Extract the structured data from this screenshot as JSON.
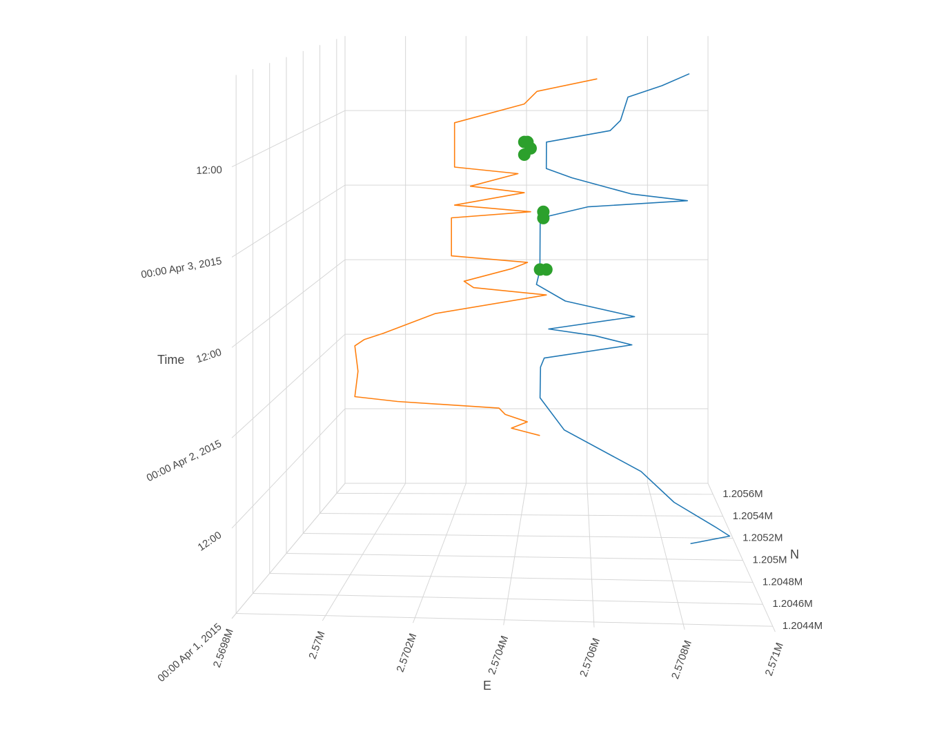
{
  "chart_data": {
    "type": "scatter3d",
    "axes": {
      "x": {
        "title": "E",
        "ticks": [
          "2.5698M",
          "2.57M",
          "2.5702M",
          "2.5704M",
          "2.5706M",
          "2.5708M",
          "2.571M"
        ]
      },
      "y": {
        "title": "N",
        "ticks": [
          "1.2044M",
          "1.2046M",
          "1.2048M",
          "1.205M",
          "1.2052M",
          "1.2054M",
          "1.2056M"
        ]
      },
      "z": {
        "title": "Time",
        "ticks": [
          "00:00 Apr 1, 2015",
          "12:00",
          "00:00 Apr 2, 2015",
          "12:00",
          "00:00 Apr 3, 2015",
          "12:00"
        ]
      }
    },
    "series": [
      {
        "color": "#ff7f0e",
        "values": [
          [
            2.57045,
            1.20555,
            "2015-04-01 10:00"
          ],
          [
            2.57036,
            1.20556,
            "2015-04-01 11:00"
          ],
          [
            2.57041,
            1.20556,
            "2015-04-01 12:00"
          ],
          [
            2.57034,
            1.20557,
            "2015-04-01 13:00"
          ],
          [
            2.57032,
            1.20557,
            "2015-04-01 14:00"
          ],
          [
            2.57,
            1.20557,
            "2015-04-01 15:00"
          ],
          [
            2.56987,
            1.20555,
            "2015-04-01 16:00"
          ],
          [
            2.56988,
            1.20555,
            "2015-04-01 20:00"
          ],
          [
            2.56987,
            1.20555,
            "2015-04-02 00:00"
          ],
          [
            2.5699,
            1.20555,
            "2015-04-02 01:00"
          ],
          [
            2.56996,
            1.20555,
            "2015-04-02 02:00"
          ],
          [
            2.57012,
            1.20556,
            "2015-04-02 05:00"
          ],
          [
            2.57047,
            1.20556,
            "2015-04-02 08:00"
          ],
          [
            2.57024,
            1.20557,
            "2015-04-02 09:00"
          ],
          [
            2.57021,
            1.20557,
            "2015-04-02 10:00"
          ],
          [
            2.57036,
            1.20557,
            "2015-04-02 12:00"
          ],
          [
            2.57041,
            1.20557,
            "2015-04-02 13:00"
          ],
          [
            2.57017,
            1.20557,
            "2015-04-02 14:00"
          ],
          [
            2.57017,
            1.20557,
            "2015-04-02 20:00"
          ],
          [
            2.57042,
            1.20557,
            "2015-04-02 21:00"
          ],
          [
            2.57018,
            1.20557,
            "2015-04-02 22:00"
          ],
          [
            2.5704,
            1.20557,
            "2015-04-03 00:00"
          ],
          [
            2.57023,
            1.20557,
            "2015-04-03 01:00"
          ],
          [
            2.57038,
            1.20557,
            "2015-04-03 03:00"
          ],
          [
            2.57018,
            1.20557,
            "2015-04-03 04:00"
          ],
          [
            2.57018,
            1.20557,
            "2015-04-03 11:00"
          ],
          [
            2.5704,
            1.20557,
            "2015-04-03 14:00"
          ],
          [
            2.57044,
            1.20557,
            "2015-04-03 16:00"
          ],
          [
            2.57063,
            1.20557,
            "2015-04-03 18:00"
          ]
        ]
      },
      {
        "color": "#1f77b4",
        "values": [
          [
            2.57082,
            1.20446,
            "2015-04-01 10:00"
          ],
          [
            2.57091,
            1.20447,
            "2015-04-01 11:00"
          ],
          [
            2.57088,
            1.20448,
            "2015-04-01 12:00"
          ],
          [
            2.57079,
            1.20458,
            "2015-04-01 14:00"
          ],
          [
            2.57072,
            1.20475,
            "2015-04-01 16:00"
          ],
          [
            2.57053,
            1.20504,
            "2015-04-01 18:00"
          ],
          [
            2.57046,
            1.20525,
            "2015-04-01 20:00"
          ],
          [
            2.57046,
            1.2053,
            "2015-04-02 00:00"
          ],
          [
            2.57047,
            1.20533,
            "2015-04-02 01:00"
          ],
          [
            2.57073,
            1.20542,
            "2015-04-02 02:00"
          ],
          [
            2.57062,
            1.20545,
            "2015-04-02 03:00"
          ],
          [
            2.57048,
            1.20545,
            "2015-04-02 04:00"
          ],
          [
            2.57074,
            1.20545,
            "2015-04-02 06:00"
          ],
          [
            2.57053,
            1.20548,
            "2015-04-02 08:00"
          ],
          [
            2.57044,
            1.20553,
            "2015-04-02 10:00"
          ],
          [
            2.57045,
            1.20555,
            "2015-04-02 12:00"
          ],
          [
            2.57045,
            1.20557,
            "2015-04-02 20:00"
          ],
          [
            2.5706,
            1.20555,
            "2015-04-02 22:00"
          ],
          [
            2.5709,
            1.20545,
            "2015-04-03 00:00"
          ],
          [
            2.57073,
            1.20545,
            "2015-04-03 01:00"
          ],
          [
            2.57055,
            1.2055,
            "2015-04-03 03:00"
          ],
          [
            2.57047,
            1.20555,
            "2015-04-03 04:00"
          ],
          [
            2.57047,
            1.20557,
            "2015-04-03 08:00"
          ],
          [
            2.57067,
            1.20555,
            "2015-04-03 10:00"
          ],
          [
            2.5707,
            1.2055,
            "2015-04-03 12:00"
          ],
          [
            2.57072,
            1.20545,
            "2015-04-03 16:00"
          ],
          [
            2.57082,
            1.20542,
            "2015-04-03 18:00"
          ],
          [
            2.5709,
            1.2054,
            "2015-04-03 20:00"
          ]
        ]
      },
      {
        "color": "#2ca02c",
        "mode": "markers",
        "values": [
          [
            2.57045,
            1.20556,
            "2015-04-02 12:00"
          ],
          [
            2.57047,
            1.20556,
            "2015-04-02 12:00"
          ],
          [
            2.57046,
            1.20557,
            "2015-04-02 20:00"
          ],
          [
            2.57046,
            1.20557,
            "2015-04-02 21:00"
          ],
          [
            2.5704,
            1.20557,
            "2015-04-03 06:00"
          ],
          [
            2.57042,
            1.20557,
            "2015-04-03 07:00"
          ],
          [
            2.5704,
            1.20557,
            "2015-04-03 08:00"
          ],
          [
            2.57041,
            1.20557,
            "2015-04-03 08:00"
          ]
        ]
      }
    ]
  }
}
